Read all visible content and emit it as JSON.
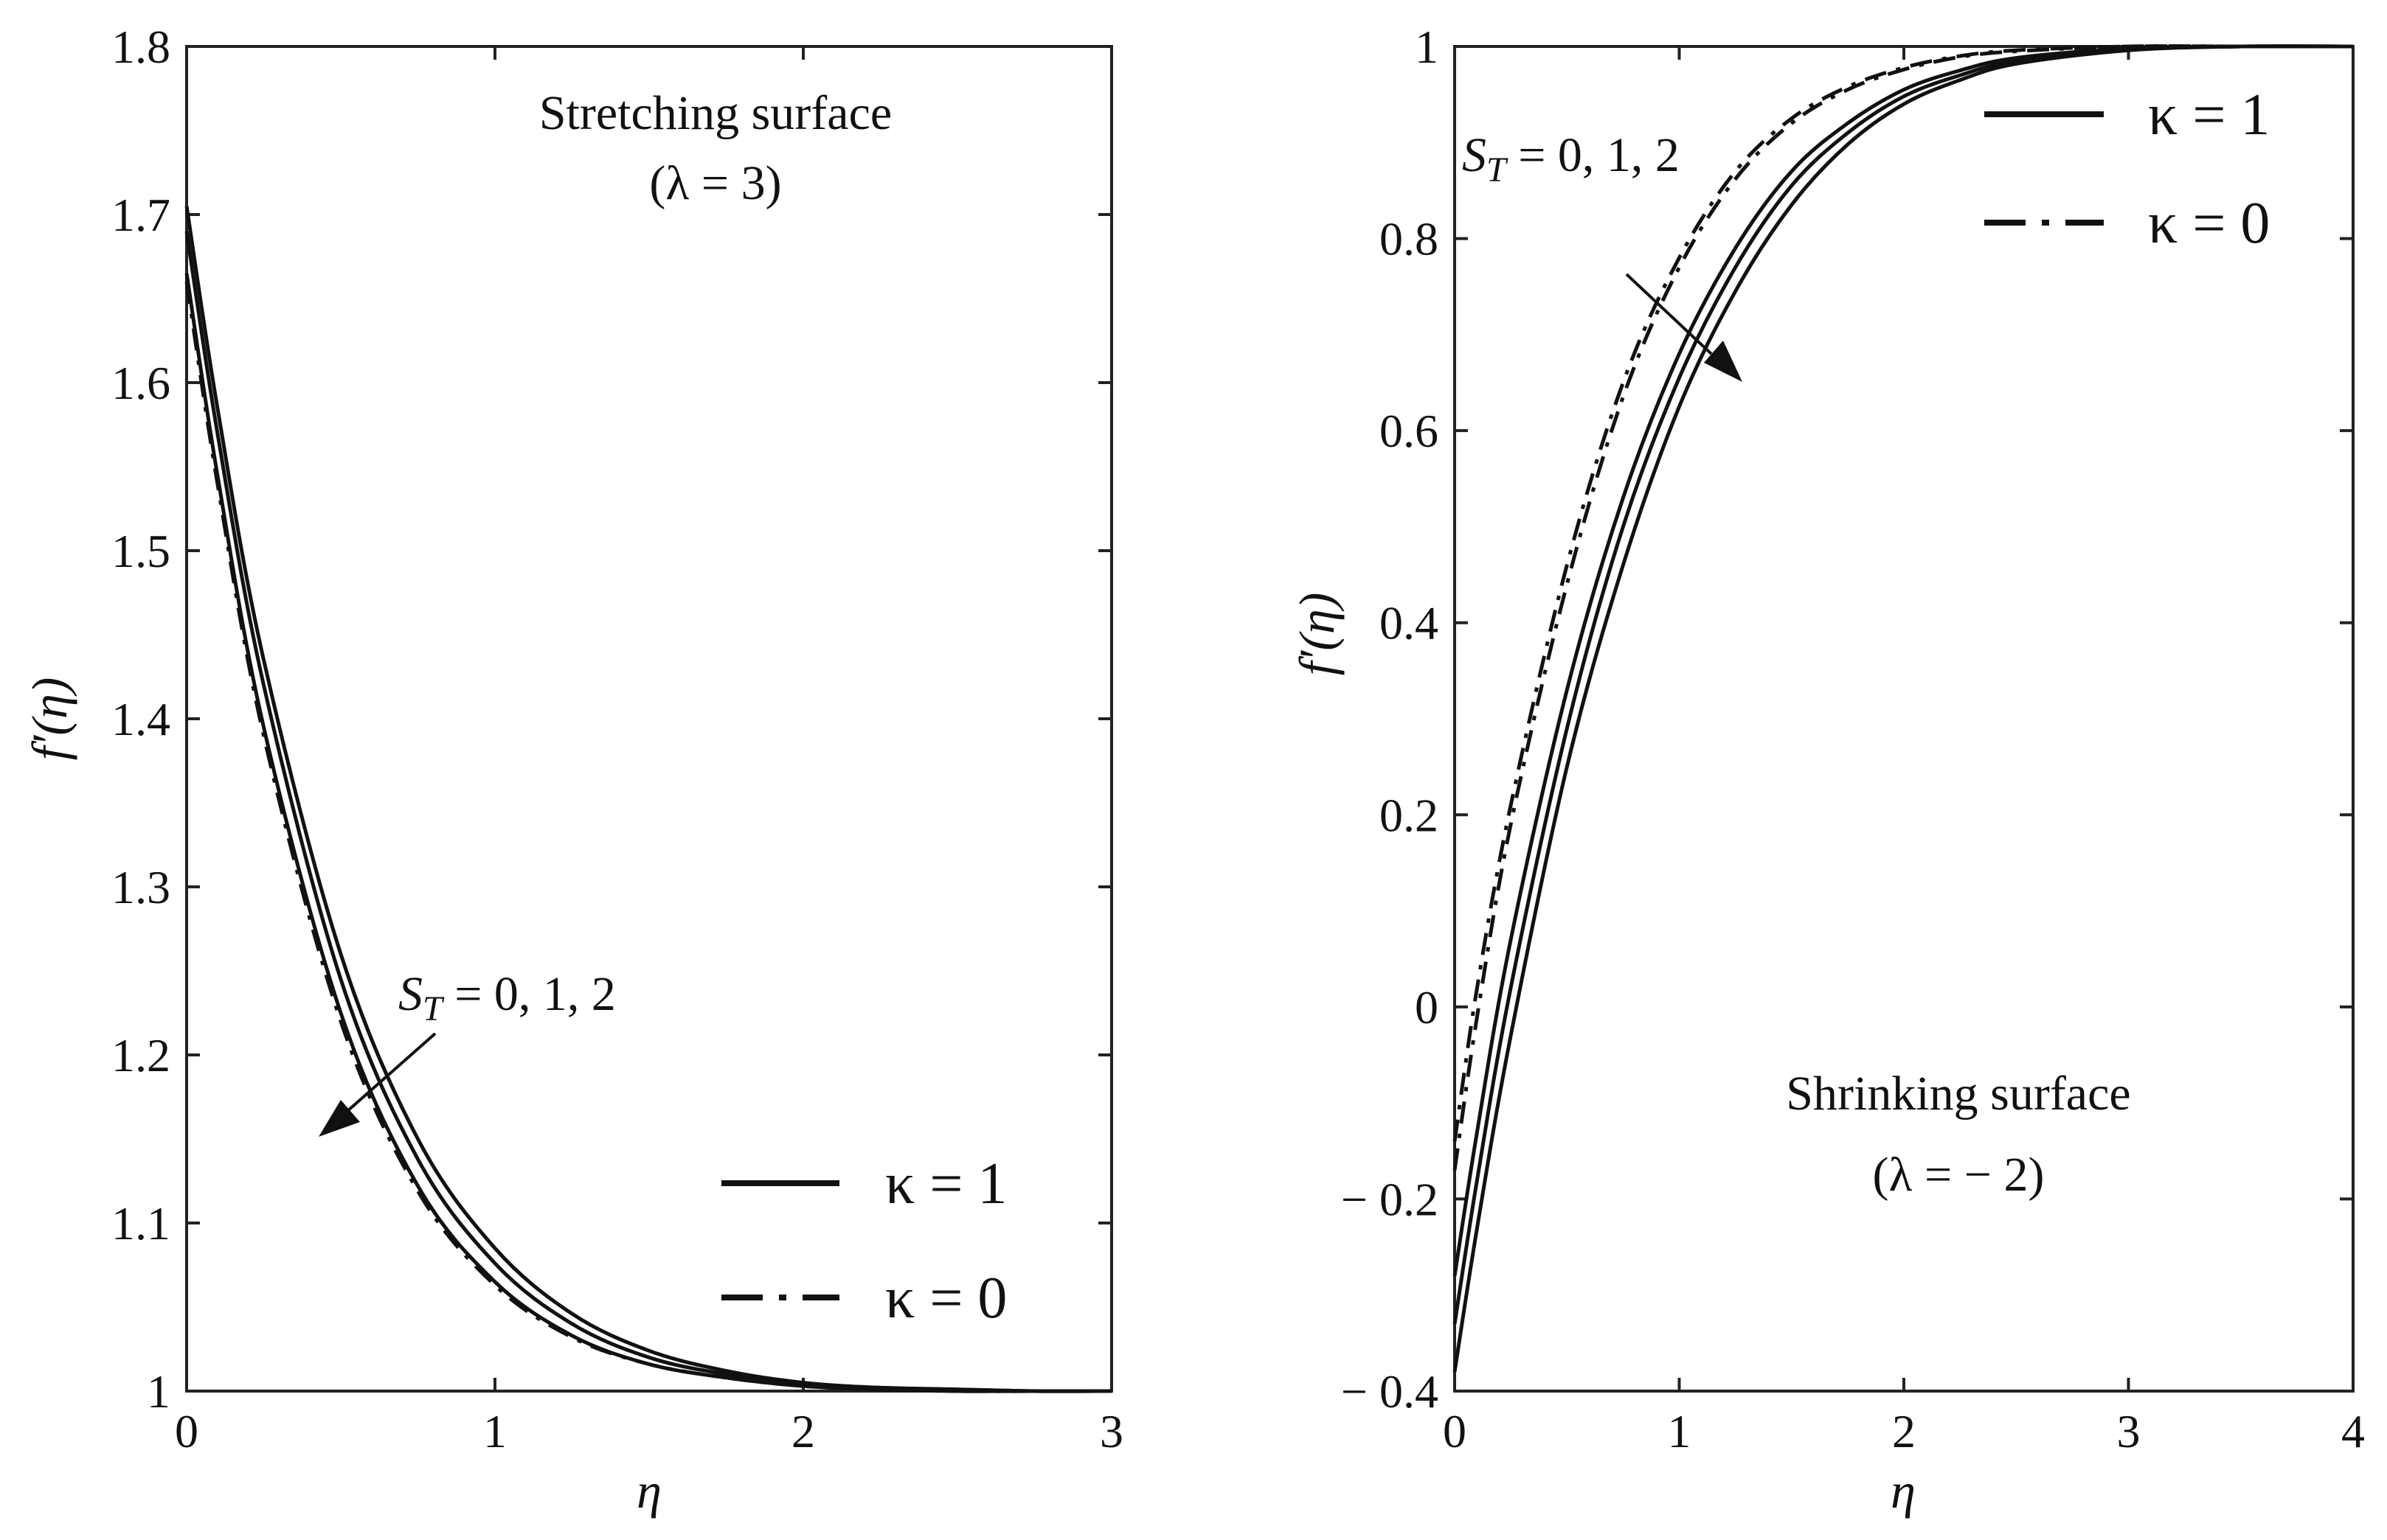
{
  "chart_data": [
    {
      "type": "line",
      "title": "",
      "xlabel": "η",
      "ylabel": "f′(η)",
      "xlim": [
        0,
        3
      ],
      "ylim": [
        1,
        1.8
      ],
      "xticks": [
        "0",
        "1",
        "2",
        "3"
      ],
      "yticks": [
        "1",
        "1.1",
        "1.2",
        "1.3",
        "1.4",
        "1.5",
        "1.6",
        "1.7",
        "1.8"
      ],
      "annotations": {
        "surface_title": "Stretching surface",
        "surface_param": "(λ = 3)",
        "arrow_label_symbol": "S",
        "arrow_label_sub": "T",
        "arrow_label_values": " = 0, 1, 2"
      },
      "legend": [
        {
          "label": "κ = 1",
          "style": "solid"
        },
        {
          "label": "κ = 0",
          "style": "dashdot"
        }
      ],
      "series": [
        {
          "name": "κ = 1, S_T = 0",
          "style": "solid",
          "x": [
            0,
            0.1,
            0.25,
            0.5,
            0.75,
            1.0,
            1.25,
            1.5,
            1.75,
            2.0,
            2.25,
            2.5,
            2.75,
            3.0
          ],
          "values": [
            1.705,
            1.585,
            1.435,
            1.26,
            1.15,
            1.085,
            1.046,
            1.024,
            1.012,
            1.005,
            1.002,
            1.001,
            1.0,
            1.0
          ]
        },
        {
          "name": "κ = 1, S_T = 1",
          "style": "solid",
          "x": [
            0,
            0.1,
            0.25,
            0.5,
            0.75,
            1.0,
            1.25,
            1.5,
            1.75,
            2.0,
            2.25,
            2.5,
            2.75,
            3.0
          ],
          "values": [
            1.69,
            1.57,
            1.42,
            1.245,
            1.138,
            1.076,
            1.04,
            1.02,
            1.01,
            1.004,
            1.002,
            1.001,
            1.0,
            1.0
          ]
        },
        {
          "name": "κ = 1, S_T = 2",
          "style": "solid",
          "x": [
            0,
            0.1,
            0.25,
            0.5,
            0.75,
            1.0,
            1.25,
            1.5,
            1.75,
            2.0,
            2.25,
            2.5,
            2.75,
            3.0
          ],
          "values": [
            1.665,
            1.545,
            1.395,
            1.225,
            1.122,
            1.065,
            1.033,
            1.016,
            1.008,
            1.003,
            1.001,
            1.0,
            1.0,
            1.0
          ]
        },
        {
          "name": "κ = 0",
          "style": "dashdot",
          "x": [
            0,
            0.1,
            0.25,
            0.5,
            0.75,
            1.0,
            1.25,
            1.5,
            1.75,
            2.0,
            2.25,
            2.5,
            2.75,
            3.0
          ],
          "values": [
            1.66,
            1.54,
            1.39,
            1.22,
            1.119,
            1.063,
            1.032,
            1.016,
            1.008,
            1.003,
            1.001,
            1.0,
            1.0,
            1.0
          ]
        }
      ]
    },
    {
      "type": "line",
      "title": "",
      "xlabel": "η",
      "ylabel": "f′(η)",
      "xlim": [
        0,
        4
      ],
      "ylim": [
        -0.4,
        1
      ],
      "xticks": [
        "0",
        "1",
        "2",
        "3",
        "4"
      ],
      "yticks": [
        "− 0.4",
        "− 0.2",
        "0",
        "0.2",
        "0.4",
        "0.6",
        "0.8",
        "1"
      ],
      "annotations": {
        "surface_title": "Shrinking surface",
        "surface_param": "(λ = − 2)",
        "arrow_label_symbol": "S",
        "arrow_label_sub": "T",
        "arrow_label_values": " = 0, 1, 2"
      },
      "legend": [
        {
          "label": "κ = 1",
          "style": "solid"
        },
        {
          "label": "κ = 0",
          "style": "dashdot"
        }
      ],
      "series": [
        {
          "name": "κ = 1, S_T = 0",
          "style": "solid",
          "x": [
            0,
            0.1,
            0.25,
            0.5,
            0.75,
            1.0,
            1.25,
            1.5,
            1.75,
            2.0,
            2.25,
            2.5,
            3.0,
            3.5,
            4.0
          ],
          "values": [
            -0.28,
            -0.13,
            0.07,
            0.33,
            0.53,
            0.68,
            0.79,
            0.87,
            0.92,
            0.955,
            0.975,
            0.988,
            0.998,
            1.0,
            1.0
          ]
        },
        {
          "name": "κ = 1, S_T = 1",
          "style": "solid",
          "x": [
            0,
            0.1,
            0.25,
            0.5,
            0.75,
            1.0,
            1.25,
            1.5,
            1.75,
            2.0,
            2.25,
            2.5,
            3.0,
            3.5,
            4.0
          ],
          "values": [
            -0.33,
            -0.18,
            0.02,
            0.29,
            0.5,
            0.655,
            0.77,
            0.855,
            0.91,
            0.948,
            0.97,
            0.985,
            0.997,
            1.0,
            1.0
          ]
        },
        {
          "name": "κ = 1, S_T = 2",
          "style": "solid",
          "x": [
            0,
            0.1,
            0.25,
            0.5,
            0.75,
            1.0,
            1.25,
            1.5,
            1.75,
            2.0,
            2.25,
            2.5,
            3.0,
            3.5,
            4.0
          ],
          "values": [
            -0.38,
            -0.23,
            -0.03,
            0.25,
            0.46,
            0.625,
            0.745,
            0.835,
            0.898,
            0.94,
            0.965,
            0.982,
            0.996,
            1.0,
            1.0
          ]
        },
        {
          "name": "κ = 0, S_T = 0",
          "style": "dashdot",
          "x": [
            0,
            0.1,
            0.25,
            0.5,
            0.75,
            1.0,
            1.25,
            1.5,
            1.75,
            2.0,
            2.25,
            2.5,
            3.0,
            3.5,
            4.0
          ],
          "values": [
            -0.14,
            0.02,
            0.21,
            0.46,
            0.65,
            0.78,
            0.87,
            0.925,
            0.958,
            0.978,
            0.99,
            0.996,
            1.0,
            1.0,
            1.0
          ]
        },
        {
          "name": "κ = 0, S_T = 1",
          "style": "dashdot",
          "x": [
            0,
            0.1,
            0.25,
            0.5,
            0.75,
            1.0,
            1.25,
            1.5,
            1.75,
            2.0,
            2.25,
            2.5,
            3.0,
            3.5,
            4.0
          ],
          "values": [
            -0.17,
            -0.01,
            0.19,
            0.44,
            0.635,
            0.77,
            0.862,
            0.92,
            0.955,
            0.976,
            0.989,
            0.995,
            1.0,
            1.0,
            1.0
          ]
        }
      ]
    }
  ]
}
